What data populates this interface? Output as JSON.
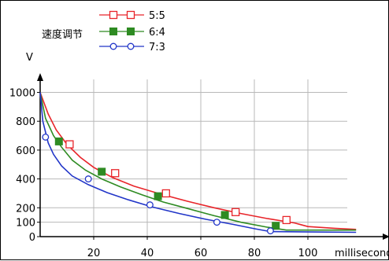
{
  "chart_data": {
    "type": "line",
    "legend_title": "速度调节",
    "ylabel": "V",
    "xlabel": "millisecond",
    "xlim": [
      0,
      130
    ],
    "ylim": [
      0,
      1090
    ],
    "x_ticks": [
      20,
      40,
      60,
      80,
      100
    ],
    "y_ticks": [
      0,
      100,
      200,
      400,
      600,
      800,
      1000
    ],
    "grid": true,
    "legend_position": "top-left",
    "series": [
      {
        "name": "5:5",
        "color": "#e8252a",
        "marker": "open-square",
        "x": [
          0,
          3,
          6,
          10,
          15,
          20,
          27,
          35,
          45,
          55,
          65,
          75,
          85,
          95,
          100,
          110,
          118
        ],
        "values": [
          1000,
          850,
          740,
          640,
          550,
          480,
          410,
          350,
          295,
          245,
          200,
          160,
          125,
          95,
          70,
          58,
          50
        ],
        "markers_x": [
          11,
          28,
          47,
          73,
          92
        ],
        "markers_y": [
          640,
          440,
          300,
          170,
          115
        ]
      },
      {
        "name": "6:4",
        "color": "#2e8b22",
        "marker": "filled-square",
        "x": [
          0,
          2,
          5,
          8,
          12,
          17,
          23,
          30,
          38,
          46,
          55,
          65,
          75,
          85,
          92,
          100,
          118
        ],
        "values": [
          1000,
          820,
          700,
          620,
          530,
          460,
          400,
          345,
          290,
          240,
          195,
          145,
          100,
          65,
          45,
          45,
          45
        ],
        "markers_x": [
          7,
          23,
          44,
          69,
          88
        ],
        "markers_y": [
          660,
          450,
          280,
          150,
          75
        ]
      },
      {
        "name": "7:3",
        "color": "#2135c8",
        "marker": "open-circle",
        "x": [
          0,
          1,
          3,
          5,
          8,
          12,
          18,
          25,
          33,
          42,
          52,
          62,
          72,
          80,
          86,
          118
        ],
        "values": [
          1000,
          800,
          650,
          570,
          490,
          420,
          360,
          305,
          255,
          205,
          160,
          120,
          85,
          55,
          35,
          30
        ],
        "markers_x": [
          2,
          18,
          41,
          66,
          86
        ],
        "markers_y": [
          690,
          400,
          220,
          100,
          40
        ]
      }
    ]
  }
}
